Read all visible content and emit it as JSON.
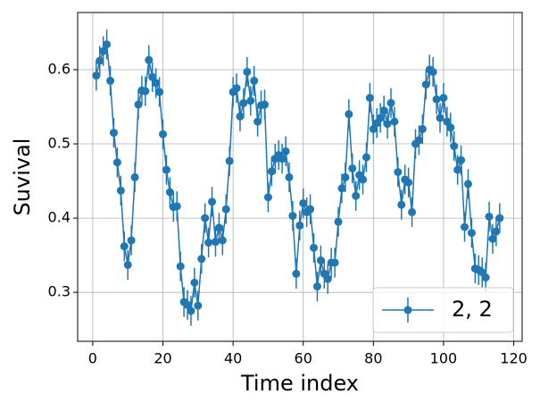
{
  "chart_data": {
    "type": "errorbar",
    "xlabel": "Time index",
    "ylabel": "Suvival",
    "x": [
      1,
      2,
      3,
      4,
      5,
      6,
      7,
      8,
      9,
      10,
      11,
      12,
      13,
      14,
      15,
      16,
      17,
      18,
      19,
      20,
      21,
      22,
      23,
      24,
      25,
      26,
      27,
      28,
      29,
      30,
      31,
      32,
      33,
      34,
      35,
      36,
      37,
      38,
      39,
      40,
      41,
      42,
      43,
      44,
      45,
      46,
      47,
      48,
      49,
      50,
      51,
      52,
      53,
      54,
      55,
      56,
      57,
      58,
      59,
      60,
      61,
      62,
      63,
      64,
      65,
      66,
      67,
      68,
      69,
      70,
      71,
      72,
      73,
      74,
      75,
      76,
      77,
      78,
      79,
      80,
      81,
      82,
      83,
      84,
      85,
      86,
      87,
      88,
      89,
      90,
      91,
      92,
      93,
      94,
      95,
      96,
      97,
      98,
      99,
      100,
      101,
      102,
      103,
      104,
      105,
      106,
      107,
      108,
      109,
      110,
      111,
      112,
      113,
      114,
      115,
      116
    ],
    "series": [
      {
        "name": "2, 2",
        "color": "#1f77b4",
        "values": [
          0.592,
          0.612,
          0.625,
          0.634,
          0.585,
          0.515,
          0.475,
          0.437,
          0.362,
          0.337,
          0.37,
          0.455,
          0.553,
          0.572,
          0.571,
          0.613,
          0.59,
          0.582,
          0.57,
          0.513,
          0.465,
          0.435,
          0.415,
          0.416,
          0.335,
          0.287,
          0.283,
          0.275,
          0.313,
          0.282,
          0.345,
          0.4,
          0.367,
          0.422,
          0.368,
          0.387,
          0.37,
          0.412,
          0.477,
          0.57,
          0.575,
          0.537,
          0.555,
          0.597,
          0.558,
          0.585,
          0.53,
          0.552,
          0.553,
          0.428,
          0.463,
          0.48,
          0.485,
          0.48,
          0.49,
          0.455,
          0.403,
          0.325,
          0.39,
          0.42,
          0.408,
          0.412,
          0.36,
          0.308,
          0.343,
          0.325,
          0.318,
          0.34,
          0.34,
          0.395,
          0.44,
          0.455,
          0.54,
          0.467,
          0.43,
          0.458,
          0.452,
          0.482,
          0.562,
          0.52,
          0.528,
          0.535,
          0.545,
          0.527,
          0.555,
          0.53,
          0.462,
          0.418,
          0.452,
          0.448,
          0.408,
          0.5,
          0.505,
          0.52,
          0.58,
          0.6,
          0.597,
          0.56,
          0.535,
          0.562,
          0.53,
          0.522,
          0.497,
          0.465,
          0.478,
          0.388,
          0.446,
          0.38,
          0.332,
          0.33,
          0.327,
          0.32,
          0.402,
          0.372,
          0.382,
          0.4
        ],
        "errors": [
          0.02,
          0.02,
          0.02,
          0.02,
          0.02,
          0.02,
          0.02,
          0.02,
          0.02,
          0.02,
          0.02,
          0.02,
          0.02,
          0.02,
          0.02,
          0.02,
          0.02,
          0.02,
          0.02,
          0.02,
          0.02,
          0.02,
          0.02,
          0.02,
          0.02,
          0.02,
          0.02,
          0.02,
          0.02,
          0.02,
          0.02,
          0.02,
          0.02,
          0.02,
          0.02,
          0.02,
          0.02,
          0.02,
          0.02,
          0.02,
          0.02,
          0.02,
          0.02,
          0.02,
          0.02,
          0.02,
          0.02,
          0.02,
          0.02,
          0.02,
          0.02,
          0.02,
          0.02,
          0.02,
          0.02,
          0.02,
          0.02,
          0.02,
          0.02,
          0.02,
          0.02,
          0.02,
          0.02,
          0.02,
          0.02,
          0.02,
          0.02,
          0.02,
          0.02,
          0.02,
          0.02,
          0.02,
          0.02,
          0.02,
          0.02,
          0.02,
          0.02,
          0.02,
          0.02,
          0.02,
          0.02,
          0.02,
          0.02,
          0.02,
          0.02,
          0.02,
          0.02,
          0.02,
          0.02,
          0.02,
          0.02,
          0.02,
          0.02,
          0.02,
          0.02,
          0.02,
          0.02,
          0.02,
          0.02,
          0.02,
          0.02,
          0.02,
          0.02,
          0.02,
          0.02,
          0.02,
          0.02,
          0.02,
          0.02,
          0.02,
          0.02,
          0.02,
          0.02,
          0.02,
          0.02,
          0.02
        ]
      }
    ],
    "xlim": [
      -4.3,
      122.4
    ],
    "xticks": [
      0,
      20,
      40,
      60,
      80,
      100,
      120
    ],
    "ylim": [
      0.234,
      0.677
    ],
    "yticks": [
      0.3,
      0.4,
      0.5,
      0.6
    ],
    "grid": true,
    "legend": "lower right"
  }
}
